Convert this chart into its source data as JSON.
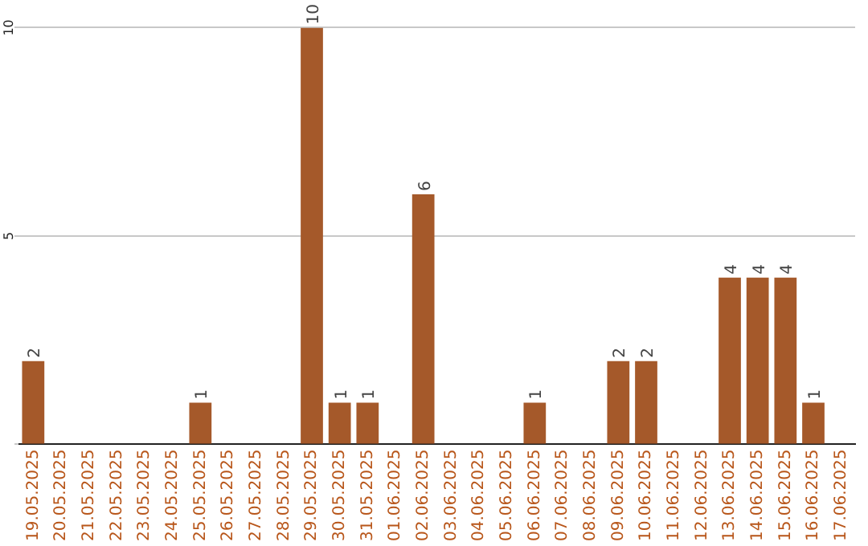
{
  "chart_data": {
    "type": "bar",
    "categories": [
      "19.05.2025",
      "20.05.2025",
      "21.05.2025",
      "22.05.2025",
      "23.05.2025",
      "24.05.2025",
      "25.05.2025",
      "26.05.2025",
      "27.05.2025",
      "28.05.2025",
      "29.05.2025",
      "30.05.2025",
      "31.05.2025",
      "01.06.2025",
      "02.06.2025",
      "03.06.2025",
      "04.06.2025",
      "05.06.2025",
      "06.06.2025",
      "07.06.2025",
      "08.06.2025",
      "09.06.2025",
      "10.06.2025",
      "11.06.2025",
      "12.06.2025",
      "13.06.2025",
      "14.06.2025",
      "15.06.2025",
      "16.06.2025",
      "17.06.2025"
    ],
    "values": [
      2,
      0,
      0,
      0,
      0,
      0,
      1,
      0,
      0,
      0,
      10,
      1,
      1,
      0,
      6,
      0,
      0,
      0,
      1,
      0,
      0,
      2,
      2,
      0,
      0,
      4,
      4,
      4,
      1,
      0
    ],
    "value_labels": [
      "2",
      null,
      null,
      null,
      null,
      null,
      "1",
      null,
      null,
      null,
      "10",
      "1",
      "1",
      null,
      "6",
      null,
      null,
      null,
      "1",
      null,
      null,
      "2",
      "2",
      null,
      null,
      "4",
      "4",
      "4",
      "1",
      null
    ],
    "color": "#a5592a",
    "ylim": [
      0,
      10
    ],
    "yticks": [
      {
        "value": 0,
        "label": null
      },
      5,
      10
    ],
    "grid": "y",
    "legend": false
  }
}
